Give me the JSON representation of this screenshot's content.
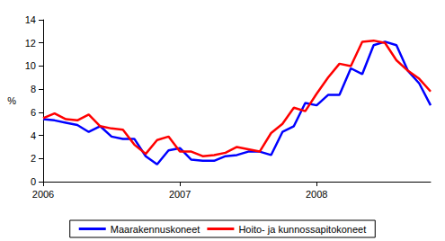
{
  "chart_data": {
    "type": "line",
    "y_label": "%",
    "categories": [
      "2006",
      null,
      null,
      null,
      null,
      null,
      null,
      null,
      null,
      null,
      null,
      null,
      "2007",
      null,
      null,
      null,
      null,
      null,
      null,
      null,
      null,
      null,
      null,
      null,
      "2008",
      null,
      null,
      null,
      null,
      null,
      null,
      null,
      null,
      null,
      null
    ],
    "series": [
      {
        "name": "Maarakennuskoneet",
        "color": "#0000ff",
        "values": [
          5.4,
          5.3,
          5.1,
          4.9,
          4.3,
          4.8,
          3.9,
          3.7,
          3.7,
          2.2,
          1.5,
          2.7,
          2.9,
          1.9,
          1.8,
          1.8,
          2.2,
          2.3,
          2.6,
          2.6,
          2.3,
          4.3,
          4.8,
          6.8,
          6.6,
          7.5,
          7.5,
          9.8,
          9.3,
          11.8,
          12.1,
          11.8,
          9.6,
          8.5,
          6.6
        ]
      },
      {
        "name": "Hoito- ja kunnossapitokoneet",
        "color": "#ff0000",
        "values": [
          5.5,
          5.9,
          5.4,
          5.3,
          5.8,
          4.8,
          4.6,
          4.5,
          3.2,
          2.4,
          3.6,
          3.9,
          2.6,
          2.6,
          2.2,
          2.3,
          2.5,
          3.0,
          2.8,
          2.6,
          4.2,
          5.0,
          6.4,
          6.1,
          7.6,
          9.0,
          10.2,
          10.0,
          12.1,
          12.2,
          12.0,
          10.5,
          9.6,
          8.9,
          7.8
        ]
      }
    ],
    "ylim": [
      0,
      14
    ],
    "yticks": [
      0,
      2,
      4,
      6,
      8,
      10,
      12,
      14
    ],
    "grid": false,
    "legend": "bottom"
  }
}
